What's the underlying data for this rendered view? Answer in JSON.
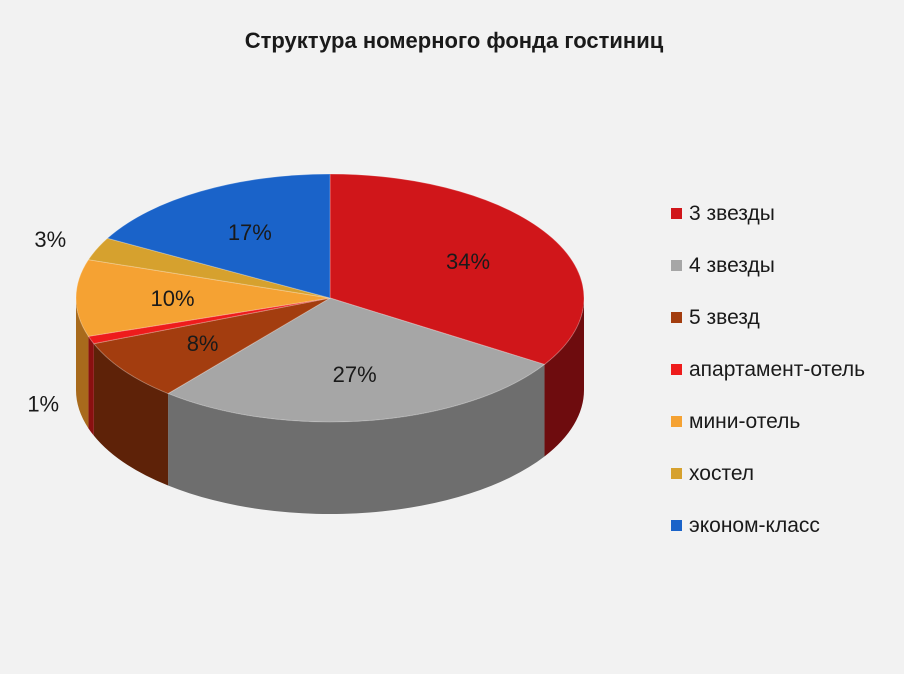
{
  "chart_data": {
    "type": "pie",
    "title": "Структура номерного фонда гостиниц",
    "legend_position": "right",
    "slices": [
      {
        "label": "3 звезды",
        "value": 34,
        "display": "34%",
        "color": "#d0161a",
        "dark": "#6e0c0e"
      },
      {
        "label": "4 звезды",
        "value": 27,
        "display": "27%",
        "color": "#a6a6a6",
        "dark": "#6e6e6e"
      },
      {
        "label": "5 звезд",
        "value": 8,
        "display": "8%",
        "color": "#a33d0f",
        "dark": "#5e2208"
      },
      {
        "label": "апартамент-отель",
        "value": 1,
        "display": "1%",
        "color": "#ee1c1c",
        "dark": "#8a1010"
      },
      {
        "label": "мини-отель",
        "value": 10,
        "display": "10%",
        "color": "#f5a233",
        "dark": "#a86a1c"
      },
      {
        "label": "хостел",
        "value": 3,
        "display": "3%",
        "color": "#d6a12e",
        "dark": "#8c6518"
      },
      {
        "label": "эконом-класс",
        "value": 17,
        "display": "17%",
        "color": "#1a63c9",
        "dark": "#0e3a78"
      }
    ]
  }
}
